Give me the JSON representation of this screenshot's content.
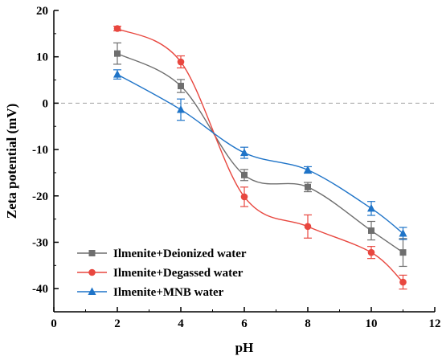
{
  "chart_data": {
    "type": "line",
    "title": "",
    "xlabel": "pH",
    "ylabel": "Zeta potential (mV)",
    "xlim": [
      0,
      12
    ],
    "ylim": [
      -45,
      20
    ],
    "xticks": [
      "0",
      "2",
      "4",
      "6",
      "8",
      "10",
      "12"
    ],
    "yticks": [
      "20",
      "10",
      "0",
      "-10",
      "-20",
      "-30",
      "-40"
    ],
    "reference_line": {
      "y": 0,
      "style": "dashed",
      "color": "#a0a0a0"
    },
    "grid": false,
    "legend_position": "bottom-left",
    "series": [
      {
        "name": "Ilmenite+Deionized water",
        "color": "#6e6e6e",
        "marker": "square",
        "x": [
          2,
          4,
          6,
          8,
          10,
          11
        ],
        "y": [
          10.7,
          3.7,
          -15.5,
          -18.1,
          -27.5,
          -32.2
        ],
        "err": [
          2.3,
          1.4,
          1.2,
          1.0,
          2.0,
          3.0
        ]
      },
      {
        "name": "Ilmenite+Degassed water",
        "color": "#e8473f",
        "marker": "circle",
        "x": [
          2,
          4,
          6,
          8,
          10,
          11
        ],
        "y": [
          16.1,
          8.9,
          -20.2,
          -26.6,
          -32.2,
          -38.6
        ],
        "err": [
          0.5,
          1.3,
          2.1,
          2.5,
          1.3,
          1.5
        ]
      },
      {
        "name": "Ilmenite+MNB water",
        "color": "#1f74c8",
        "marker": "triangle",
        "x": [
          2,
          4,
          6,
          8,
          10,
          11
        ],
        "y": [
          6.2,
          -1.4,
          -10.7,
          -14.4,
          -22.7,
          -28.1
        ],
        "err": [
          1.0,
          2.3,
          1.2,
          0.7,
          1.5,
          1.3
        ]
      }
    ]
  }
}
